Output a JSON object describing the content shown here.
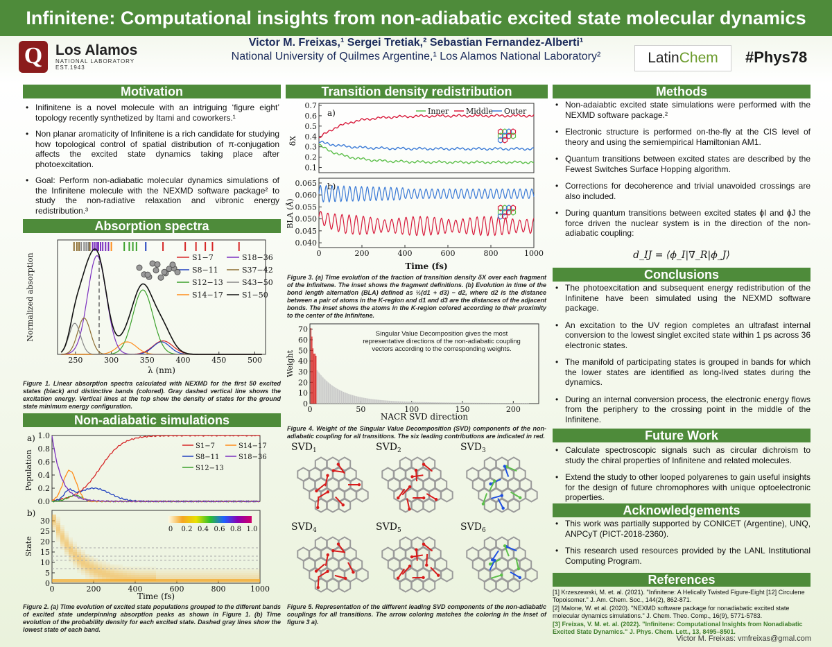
{
  "title": "Infinitene: Computational insights from non-adiabatic excited state molecular dynamics",
  "authors_line": "Victor M. Freixas,¹ Sergei Tretiak,² Sebastian Fernandez-Alberti¹",
  "affiliations_line": "National University of Quilmes Argentine,¹ Los Alamos National Laboratory²",
  "logos": {
    "quilmes": "Q",
    "lanl_big": "Los Alamos",
    "lanl_small": "NATIONAL LABORATORY",
    "lanl_est": "EST.1943",
    "latin_a": "Latin",
    "latin_b": "Chem"
  },
  "hashtag": "#Phys78",
  "sections": {
    "motivation": "Motivation",
    "absorption": "Absorption spectra",
    "nonadiabatic": "Non-adiabatic simulations",
    "transition": "Transition density redistribution",
    "methods": "Methods",
    "conclusions": "Conclusions",
    "future": "Future Work",
    "ack": "Acknowledgements",
    "refs": "References"
  },
  "motivation": [
    "Inifinitene is a novel molecule with an intriguing ‘figure eight’ topology recently synthetized by Itami and coworkers.¹",
    "Non planar aromaticity of Infinitene is a rich candidate for studying how topological control of spatial distribution of π-conjugation affects the excited state dynamics taking place after photoexcitation.",
    "Goal: Perform non-adiabatic molecular dynamics simulations of the Infinitene molecule with the NEXMD software package² to study the non-radiative relaxation and vibronic energy redistribution.³"
  ],
  "methods": [
    "Non-adaiabtic excited state simulations were performed with the NEXMD software package.²",
    "Electronic structure is performed on-the-fly at the CIS level of theory and using the semiempirical Hamiltonian AM1.",
    "Quantum transitions between excited states are described by the Fewest Switches Surface Hopping algorithm.",
    "Corrections for decoherence and trivial unavoided crossings are also included.",
    "During quantum transitions between excited states ϕI and ϕJ the force driven the nuclear system is in the direction of the non-adiabatic coupling:"
  ],
  "equation": "d_IJ = ⟨ϕ_I|∇_R|ϕ_J⟩",
  "conclusions": [
    "The photoexcitation and subsequent energy redistribution of the Infinitene have been simulated using the NEXMD software package.",
    "An excitation to the UV region completes an ultrafast internal conversion to the lowest singlet excited state within 1 ps across 36 electronic states.",
    "The manifold of participating states is grouped in bands for which the lower states are identified as long-lived states during the dynamics.",
    "During an internal conversion process, the electronic energy flows from the periphery to the crossing point in the middle of the Infinitene."
  ],
  "future": [
    "Calculate spectroscopic signals such as circular dichroism to study the chiral properties of Infinitene and related molecules.",
    "Extend the study to other looped polyarenes to gain useful insights for the design of future chromophores with unique optoelectronic properties."
  ],
  "ack": [
    "This work was partially supported by CONICET (Argentine), UNQ, ANPCyT (PICT-2018-2360).",
    "This research used resources provided by the LANL Institutional Computing Program."
  ],
  "refs": [
    "[1] Krzeszewski, M. et. al. (2021). \"Infinitene: A Helically Twisted Figure-Eight [12] Circulene Topoisomer.\" J. Am. Chem. Soc., 144(2), 862-871.",
    "[2] Malone, W. et al. (2020). \"NEXMD software package for nonadiabatic excited state molecular dynamics simulations.\" J. Chem. Theo. Comp., 16(9), 5771-5783.",
    "[3] Freixas, V. M. et. al. (2022). \"Infinitene: Computational Insights from Nonadiabatic Excited State Dynamics.\" J. Phys. Chem. Lett., 13, 8495–8501."
  ],
  "captions": {
    "fig1": "Figure 1. Linear absorption spectra calculated with NEXMD for the first 50 excited states (black) and distinctive bands (colored). Gray dashed vertical line shows the excitation energy. Vertical lines at the top show the density of states for the ground state minimum energy configuration.",
    "fig2": "Figure 2. (a) Time evolution of excited state populations grouped to the different bands of excited state underpinning absorption peaks as shown in Figure 1. (b) Time evolution of the probability density for each excited state. Dashed gray lines show the lowest state of each band.",
    "fig3": "Figure 3. (a) Time evolution of the fraction of transition density δX over each fragment of the Infinitene. The inset shows the fragment definitions. (b) Evolution in time of the bond length alternation (BLA) defined as ½(d1 + d3) − d2, where d2 is the distance between a pair of atoms in the K-region and d1 and d3 are the distances of the adjacent bonds. The inset shows the atoms in the K-region colored according to their proximity to the center of the Infinitene.",
    "fig4": "Figure 4. Weight of the Singular Value Decomposition (SVD) components of the non-adiabatic coupling for all transitions. The six leading contributions are indicated in red.",
    "fig5": "Figure 5. Representation of the different leading SVD components of the non-adiabatic couplings for all transitions. The arrow coloring matches the coloring in the inset of figure 3 a)."
  },
  "svd_note": "Singular Value Decomposition gives the most representative directions of the non-adiabatic coupling vectors according to the corresponding weights.",
  "svd_labels": [
    "SVD1",
    "SVD2",
    "SVD3",
    "SVD4",
    "SVD5",
    "SVD6"
  ],
  "footer": "Victor M. Freixas: vmfreixas@gmal.com",
  "chart_data": [
    {
      "id": "fig1",
      "type": "line",
      "title": "",
      "xlabel": "λ (nm)",
      "ylabel": "Normalized absorption",
      "xlim": [
        225,
        515
      ],
      "ylim": [
        0,
        1.1
      ],
      "xticks": [
        250,
        300,
        350,
        400,
        450,
        500
      ],
      "excitation_nm": 283,
      "legend": [
        "S1−7",
        "S8−11",
        "S12−13",
        "S14−17",
        "S18−36",
        "S37−42",
        "S43−50",
        "S1−50"
      ],
      "colors": [
        "#d62728",
        "#1f3fbf",
        "#3aa02a",
        "#ff8c1a",
        "#7b2fbf",
        "#8c6d31",
        "#888888",
        "#111111"
      ],
      "peaks": [
        {
          "name": "S1−7",
          "center": 372,
          "height": 0.13,
          "width": 14
        },
        {
          "name": "S8−11",
          "center": 370,
          "height": 0.12,
          "width": 12
        },
        {
          "name": "S12−13",
          "center": 344,
          "height": 0.62,
          "width": 14
        },
        {
          "name": "S14−17",
          "center": 322,
          "height": 0.12,
          "width": 13
        },
        {
          "name": "S18−36",
          "center": 280,
          "height": 0.95,
          "width": 13
        },
        {
          "name": "S37−42",
          "center": 262,
          "height": 0.35,
          "width": 9
        },
        {
          "name": "S43−50",
          "center": 249,
          "height": 0.3,
          "width": 8
        }
      ]
    },
    {
      "id": "fig2a",
      "type": "line",
      "xlabel": "Time (fs)",
      "ylabel": "Population",
      "xlim": [
        0,
        1000
      ],
      "ylim": [
        0,
        1
      ],
      "xticks": [
        0,
        200,
        400,
        600,
        800,
        1000
      ],
      "yticks": [
        0.0,
        0.2,
        0.4,
        0.6,
        0.8,
        1.0
      ],
      "legend": [
        "S1−7",
        "S8−11",
        "S12−13",
        "S14−17",
        "S18−36"
      ]
    },
    {
      "id": "fig2b",
      "type": "heatmap",
      "xlabel": "Time (fs)",
      "ylabel": "State",
      "xlim": [
        0,
        1000
      ],
      "ylim": [
        0,
        35
      ],
      "yticks": [
        0,
        5,
        10,
        15,
        20,
        25,
        30
      ],
      "colorbar_ticks": [
        "0",
        "0.2",
        "0.4",
        "0.6",
        "0.8",
        "1.0"
      ]
    },
    {
      "id": "fig3a",
      "type": "line",
      "ylabel": "δX",
      "xlim": [
        0,
        1000
      ],
      "ylim": [
        0.05,
        0.72
      ],
      "yticks": [
        0.1,
        0.2,
        0.3,
        0.4,
        0.5,
        0.6,
        0.7
      ],
      "series": [
        {
          "name": "Inner",
          "final": 0.15
        },
        {
          "name": "Middle",
          "final": 0.6
        },
        {
          "name": "Outer",
          "final": 0.28
        }
      ]
    },
    {
      "id": "fig3b",
      "type": "line",
      "xlabel": "Time (fs)",
      "ylabel": "BLA (Å)",
      "xlim": [
        0,
        1000
      ],
      "ylim": [
        0.038,
        0.067
      ],
      "yticks": [
        0.04,
        0.045,
        0.05,
        0.055,
        0.06,
        0.065
      ],
      "xticks": [
        0,
        200,
        400,
        600,
        800,
        1000
      ]
    },
    {
      "id": "fig4",
      "type": "bar",
      "xlabel": "NACR SVD direction",
      "ylabel": "Weight",
      "xlim": [
        0,
        225
      ],
      "ylim": [
        0,
        75
      ],
      "xticks": [
        0,
        50,
        100,
        150,
        200
      ],
      "yticks": [
        0,
        10,
        20,
        30,
        40,
        50,
        60,
        70
      ],
      "red_values": [
        71,
        63,
        52,
        47,
        47,
        45
      ]
    }
  ]
}
